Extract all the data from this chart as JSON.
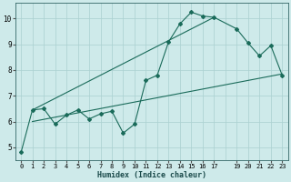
{
  "xlabel": "Humidex (Indice chaleur)",
  "bg_color": "#ceeaea",
  "grid_color": "#aad0d0",
  "line_color": "#1a6b5a",
  "xlim": [
    -0.5,
    23.5
  ],
  "ylim": [
    4.5,
    10.6
  ],
  "xticks": [
    0,
    1,
    2,
    3,
    4,
    5,
    6,
    7,
    8,
    9,
    10,
    11,
    12,
    13,
    14,
    15,
    16,
    17,
    19,
    20,
    21,
    22,
    23
  ],
  "yticks": [
    5,
    6,
    7,
    8,
    9,
    10
  ],
  "series1_x": [
    0,
    1,
    2,
    3,
    4,
    5,
    6,
    7,
    8,
    9,
    10,
    11,
    12,
    13,
    14,
    15,
    16,
    17,
    19,
    20,
    21,
    22,
    23
  ],
  "series1_y": [
    4.8,
    6.45,
    6.5,
    5.9,
    6.25,
    6.45,
    6.1,
    6.3,
    6.4,
    5.55,
    5.9,
    7.6,
    7.8,
    9.1,
    9.8,
    10.25,
    10.1,
    10.05,
    9.6,
    9.05,
    8.55,
    8.95,
    7.8
  ],
  "series2_x": [
    1,
    17
  ],
  "series2_y": [
    6.45,
    10.05
  ],
  "series3_x": [
    1,
    23
  ],
  "series3_y": [
    6.0,
    7.85
  ]
}
